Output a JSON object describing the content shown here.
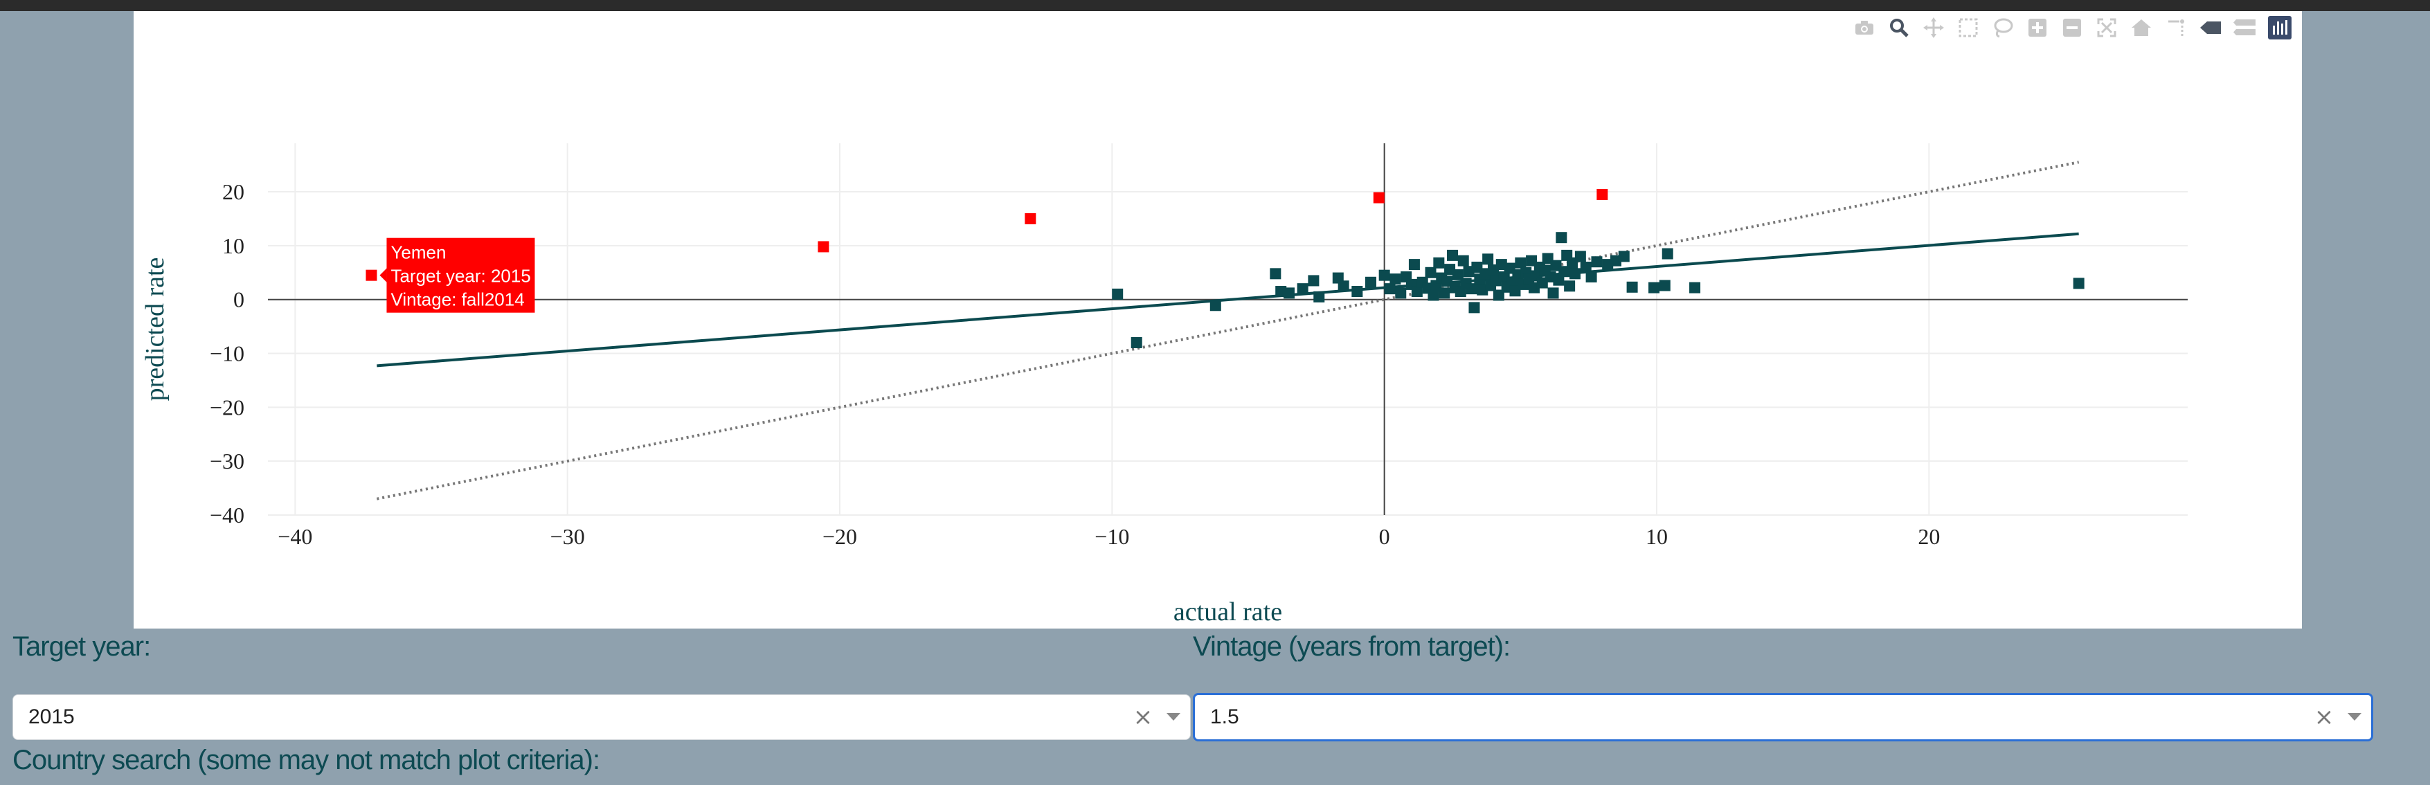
{
  "chart_data": {
    "type": "scatter",
    "xlabel": "actual rate",
    "ylabel": "predicted rate",
    "xlim": [
      -41,
      29.5
    ],
    "ylim": [
      -40,
      29
    ],
    "x_ticks": [
      -40,
      -30,
      -20,
      -10,
      0,
      10,
      20
    ],
    "y_ticks": [
      -40,
      -30,
      -20,
      -10,
      0,
      10,
      20
    ],
    "grid": true,
    "legend": "none",
    "zero_lines": true,
    "colors": {
      "normal": "#0b4a4f",
      "highlight": "#ff0000",
      "fit_line": "#0b4a4f",
      "reference_line": "#777777"
    },
    "fit_line": {
      "x": [
        -37,
        25.5
      ],
      "y": [
        -12.3,
        12.2
      ]
    },
    "reference_line": {
      "x": [
        -37,
        25.5
      ],
      "y": [
        -37,
        25.5
      ]
    },
    "series": [
      {
        "color": "#ff0000",
        "points": [
          [
            -37.2,
            4.5
          ],
          [
            -20.6,
            9.8
          ],
          [
            -13,
            15
          ],
          [
            -0.2,
            18.9
          ],
          [
            8,
            19.5
          ]
        ]
      },
      {
        "color": "#0b4a4f",
        "points": [
          [
            -9.8,
            1
          ],
          [
            -9.1,
            -8
          ],
          [
            -6.2,
            -1.1
          ],
          [
            -4,
            4.8
          ],
          [
            -3.8,
            1.5
          ],
          [
            -3.5,
            1.2
          ],
          [
            -3,
            2
          ],
          [
            -2.6,
            3.5
          ],
          [
            -2.4,
            0.5
          ],
          [
            -1.7,
            4
          ],
          [
            -1.5,
            2.5
          ],
          [
            -1,
            1.5
          ],
          [
            -0.5,
            3.2
          ],
          [
            0,
            4.5
          ],
          [
            0.2,
            2
          ],
          [
            0.4,
            3.8
          ],
          [
            0.6,
            1.2
          ],
          [
            0.8,
            4.2
          ],
          [
            1,
            2.8
          ],
          [
            1.1,
            6.5
          ],
          [
            1.2,
            1.5
          ],
          [
            1.4,
            3.2
          ],
          [
            1.6,
            2.1
          ],
          [
            1.7,
            5
          ],
          [
            1.8,
            0.8
          ],
          [
            1.9,
            2.6
          ],
          [
            2,
            6.8
          ],
          [
            2.1,
            4
          ],
          [
            2.2,
            1.2
          ],
          [
            2.3,
            3.4
          ],
          [
            2.4,
            5.6
          ],
          [
            2.5,
            8.2
          ],
          [
            2.6,
            2.2
          ],
          [
            2.7,
            4.6
          ],
          [
            2.8,
            1.5
          ],
          [
            2.9,
            7.2
          ],
          [
            3,
            3
          ],
          [
            3.1,
            5.2
          ],
          [
            3.2,
            2
          ],
          [
            3.3,
            -1.5
          ],
          [
            3.4,
            6
          ],
          [
            3.5,
            3.8
          ],
          [
            3.6,
            1.8
          ],
          [
            3.7,
            4.8
          ],
          [
            3.8,
            7.5
          ],
          [
            3.9,
            2.6
          ],
          [
            4,
            5.5
          ],
          [
            4.1,
            3.5
          ],
          [
            4.2,
            0.8
          ],
          [
            4.3,
            6.5
          ],
          [
            4.4,
            4.2
          ],
          [
            4.5,
            2.3
          ],
          [
            4.6,
            5.8
          ],
          [
            4.7,
            3.2
          ],
          [
            4.8,
            1.6
          ],
          [
            4.9,
            4.6
          ],
          [
            5,
            6.8
          ],
          [
            5.1,
            2.8
          ],
          [
            5.2,
            5
          ],
          [
            5.3,
            3.8
          ],
          [
            5.4,
            7.2
          ],
          [
            5.5,
            2.2
          ],
          [
            5.6,
            4.4
          ],
          [
            5.7,
            6
          ],
          [
            5.8,
            3.1
          ],
          [
            5.9,
            5.4
          ],
          [
            6,
            7.6
          ],
          [
            6.1,
            4.2
          ],
          [
            6.2,
            1.2
          ],
          [
            6.3,
            6.3
          ],
          [
            6.4,
            3.6
          ],
          [
            6.5,
            11.5
          ],
          [
            6.6,
            5.2
          ],
          [
            6.7,
            8.2
          ],
          [
            6.8,
            2.5
          ],
          [
            6.9,
            6.8
          ],
          [
            7,
            4.8
          ],
          [
            7.2,
            8
          ],
          [
            7.4,
            6
          ],
          [
            7.6,
            4.2
          ],
          [
            7.8,
            7
          ],
          [
            8.2,
            6.5
          ],
          [
            8.5,
            7.2
          ],
          [
            8.8,
            8
          ],
          [
            9.1,
            2.3
          ],
          [
            9.9,
            2.2
          ],
          [
            10.3,
            2.6
          ],
          [
            10.4,
            8.5
          ],
          [
            11.4,
            2.2
          ],
          [
            25.5,
            3
          ]
        ]
      }
    ],
    "tooltip": {
      "line1": "Yemen",
      "line2": "Target year: 2015",
      "line3": "Vintage: fall2014"
    }
  },
  "modebar": {
    "icons": [
      "camera-icon",
      "zoom-icon",
      "pan-icon",
      "box-select-icon",
      "lasso-select-icon",
      "zoom-in-icon",
      "zoom-out-icon",
      "autoscale-icon",
      "reset-axes-icon",
      "spike-lines-icon",
      "hover-closest-icon",
      "hover-compare-icon",
      "plotly-logo-icon"
    ]
  },
  "filters": {
    "target_year_label": "Target year:",
    "target_year_value": "2015",
    "vintage_label": "Vintage (years from target):",
    "vintage_value": "1.5",
    "clear_glyph": "×",
    "country_search_label": "Country search (some may not match plot criteria):"
  }
}
